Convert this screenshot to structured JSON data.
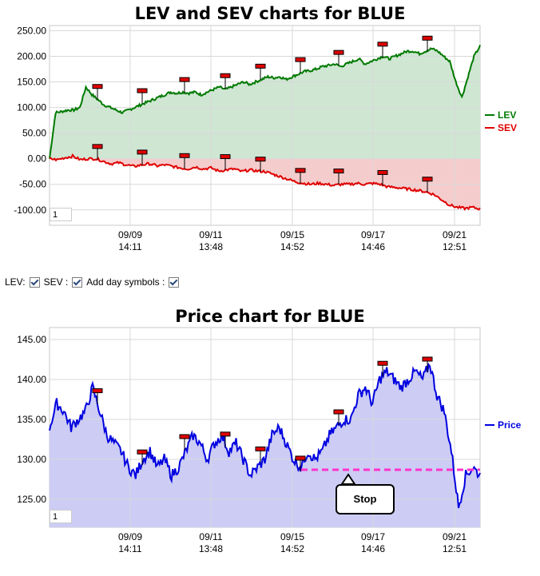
{
  "chart_data": [
    {
      "type": "line",
      "title": "LEV and SEV charts for BLUE",
      "xlabel": "",
      "ylabel": "",
      "ylim": [
        -130,
        260
      ],
      "y_ticks": [
        "250.00",
        "200.00",
        "150.00",
        "100.00",
        "50.00",
        "0.00",
        "-50.00",
        "-100.00"
      ],
      "x_ticks": [
        {
          "date": "09/09",
          "time": "14:11"
        },
        {
          "date": "09/11",
          "time": "13:48"
        },
        {
          "date": "09/15",
          "time": "14:52"
        },
        {
          "date": "09/17",
          "time": "14:46"
        },
        {
          "date": "09/21",
          "time": "12:51"
        }
      ],
      "grid": true,
      "legend_position": "right",
      "series": [
        {
          "name": "LEV",
          "color": "#007a00",
          "fill": "#cfe6d3",
          "values": [
            0,
            90,
            92,
            95,
            95,
            100,
            140,
            125,
            115,
            105,
            100,
            95,
            90,
            95,
            100,
            105,
            110,
            115,
            120,
            125,
            130,
            128,
            130,
            128,
            130,
            125,
            130,
            135,
            140,
            135,
            140,
            145,
            150,
            145,
            150,
            155,
            160,
            158,
            160,
            155,
            160,
            165,
            170,
            172,
            175,
            180,
            182,
            185,
            180,
            185,
            190,
            195,
            185,
            190,
            195,
            200,
            195,
            200,
            205,
            210,
            210,
            205,
            210,
            215,
            210,
            200,
            190,
            150,
            120,
            160,
            200,
            220
          ]
        },
        {
          "name": "SEV",
          "color": "#e00000",
          "fill": "#f5cccc",
          "values": [
            0,
            -2,
            2,
            5,
            -2,
            0,
            0,
            -5,
            -10,
            -8,
            -12,
            -15,
            -12,
            -10,
            -14,
            -12,
            -15,
            -18,
            -20,
            -16,
            -20,
            -18,
            -24,
            -22,
            -20,
            -25,
            -22,
            -24,
            -25,
            -30,
            -35,
            -40,
            -45,
            -48,
            -50,
            -48,
            -50,
            -52,
            -50,
            -50,
            -48,
            -50,
            -48,
            -50,
            -55,
            -56,
            -58,
            -60,
            -62,
            -65,
            -70,
            -80,
            -90,
            -95,
            -97,
            -95,
            -98
          ]
        }
      ],
      "day_markers": true
    },
    {
      "type": "line",
      "title": "Price chart for BLUE",
      "xlabel": "",
      "ylabel": "",
      "ylim": [
        121.5,
        146.5
      ],
      "y_ticks": [
        "145.00",
        "140.00",
        "135.00",
        "130.00",
        "125.00"
      ],
      "x_ticks": [
        {
          "date": "09/09",
          "time": "14:11"
        },
        {
          "date": "09/11",
          "time": "13:48"
        },
        {
          "date": "09/15",
          "time": "14:52"
        },
        {
          "date": "09/17",
          "time": "14:46"
        },
        {
          "date": "09/21",
          "time": "12:51"
        }
      ],
      "grid": true,
      "legend_position": "right",
      "series": [
        {
          "name": "Price",
          "color": "#0000e0",
          "fill": "#ccccf5",
          "values": [
            134,
            137,
            136,
            134,
            135,
            136,
            139,
            136,
            133,
            132,
            131,
            129,
            128,
            130,
            131,
            129,
            130,
            128,
            129,
            131,
            133,
            132,
            130,
            132,
            133,
            131,
            132,
            130,
            128,
            129,
            130,
            133,
            134,
            132,
            130,
            129,
            131,
            130,
            131,
            133,
            134,
            135,
            135,
            138,
            139,
            137,
            140,
            141,
            140,
            139,
            140,
            141,
            140,
            142,
            138,
            136,
            131,
            124,
            128,
            129,
            128
          ]
        }
      ],
      "stop_level": 128.7,
      "stop_label": "Stop",
      "day_markers": true
    }
  ],
  "controls": {
    "lev_label": "LEV:",
    "sev_label": "SEV :",
    "day_label": "Add day symbols :",
    "lev_checked": true,
    "sev_checked": true,
    "day_checked": true
  },
  "zoom_lev": "1",
  "zoom_price": "1",
  "colors": {
    "grid": "#d8d8d8",
    "marker": "#e00000"
  }
}
